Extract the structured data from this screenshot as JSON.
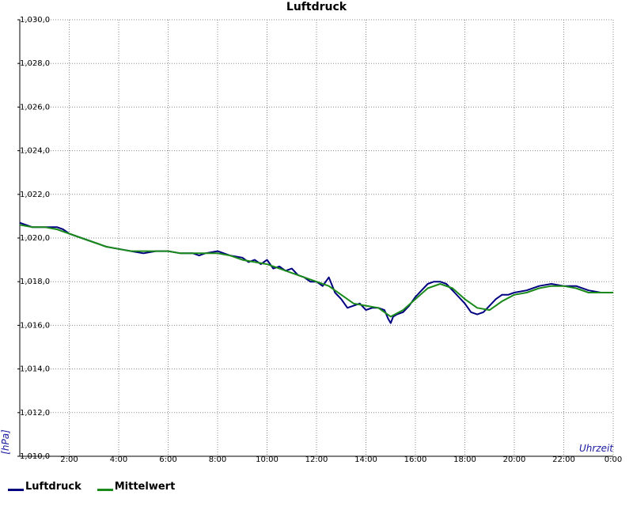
{
  "chart_data": {
    "type": "line",
    "title": "Luftdruck",
    "xlabel": "Uhrzeit",
    "ylabel": "[hPa]",
    "xlim": [
      0,
      24
    ],
    "ylim": [
      1010,
      1030
    ],
    "x_ticks": [
      {
        "value": 2,
        "label": "2:00"
      },
      {
        "value": 4,
        "label": "4:00"
      },
      {
        "value": 6,
        "label": "6:00"
      },
      {
        "value": 8,
        "label": "8:00"
      },
      {
        "value": 10,
        "label": "10:00"
      },
      {
        "value": 12,
        "label": "12:00"
      },
      {
        "value": 14,
        "label": "14:00"
      },
      {
        "value": 16,
        "label": "16:00"
      },
      {
        "value": 18,
        "label": "18:00"
      },
      {
        "value": 20,
        "label": "20:00"
      },
      {
        "value": 22,
        "label": "22:00"
      },
      {
        "value": 24,
        "label": "0:00"
      }
    ],
    "y_ticks": [
      {
        "value": 1010,
        "label": "1,010,0"
      },
      {
        "value": 1012,
        "label": "1,012,0"
      },
      {
        "value": 1014,
        "label": "1,014,0"
      },
      {
        "value": 1016,
        "label": "1,016,0"
      },
      {
        "value": 1018,
        "label": "1,018,0"
      },
      {
        "value": 1020,
        "label": "1,020,0"
      },
      {
        "value": 1022,
        "label": "1,022,0"
      },
      {
        "value": 1024,
        "label": "1,024,0"
      },
      {
        "value": 1026,
        "label": "1,026,0"
      },
      {
        "value": 1028,
        "label": "1,028,0"
      },
      {
        "value": 1030,
        "label": "1,030,0"
      }
    ],
    "grid": true,
    "legend_position": "bottom-left",
    "series": [
      {
        "name": "Luftdruck",
        "color": "#000080",
        "x": [
          0,
          0.25,
          0.5,
          0.75,
          1,
          1.25,
          1.5,
          1.75,
          2,
          2.5,
          3,
          3.5,
          4,
          4.5,
          5,
          5.5,
          6,
          6.5,
          7,
          7.25,
          7.5,
          8,
          8.5,
          9,
          9.25,
          9.5,
          9.75,
          10,
          10.25,
          10.5,
          10.75,
          11,
          11.25,
          11.5,
          11.75,
          12,
          12.25,
          12.5,
          12.75,
          13,
          13.25,
          13.5,
          13.75,
          14,
          14.25,
          14.5,
          14.75,
          14.9,
          15,
          15.1,
          15.25,
          15.5,
          15.75,
          16,
          16.25,
          16.5,
          16.75,
          17,
          17.25,
          17.5,
          17.75,
          18,
          18.25,
          18.5,
          18.75,
          19,
          19.25,
          19.5,
          19.75,
          20,
          20.5,
          21,
          21.5,
          22,
          22.5,
          23,
          23.5,
          24
        ],
        "y": [
          1020.7,
          1020.6,
          1020.5,
          1020.5,
          1020.5,
          1020.5,
          1020.5,
          1020.4,
          1020.2,
          1020.0,
          1019.8,
          1019.6,
          1019.5,
          1019.4,
          1019.3,
          1019.4,
          1019.4,
          1019.3,
          1019.3,
          1019.2,
          1019.3,
          1019.4,
          1019.2,
          1019.1,
          1018.9,
          1019.0,
          1018.8,
          1019.0,
          1018.6,
          1018.7,
          1018.5,
          1018.6,
          1018.3,
          1018.2,
          1018.0,
          1018.0,
          1017.8,
          1018.2,
          1017.5,
          1017.2,
          1016.8,
          1016.9,
          1017.0,
          1016.7,
          1016.8,
          1016.8,
          1016.7,
          1016.3,
          1016.1,
          1016.4,
          1016.5,
          1016.6,
          1016.9,
          1017.3,
          1017.6,
          1017.9,
          1018.0,
          1018.0,
          1017.9,
          1017.6,
          1017.3,
          1017.0,
          1016.6,
          1016.5,
          1016.6,
          1016.9,
          1017.2,
          1017.4,
          1017.4,
          1017.5,
          1017.6,
          1017.8,
          1017.9,
          1017.8,
          1017.8,
          1017.6,
          1017.5,
          1017.5
        ]
      },
      {
        "name": "Mittelwert",
        "color": "#1a8a1a",
        "x": [
          0,
          0.5,
          1,
          1.5,
          2,
          2.5,
          3,
          3.5,
          4,
          4.5,
          5,
          5.5,
          6,
          6.5,
          7,
          7.5,
          8,
          8.5,
          9,
          9.5,
          10,
          10.5,
          11,
          11.5,
          12,
          12.5,
          13,
          13.5,
          14,
          14.5,
          15,
          15.5,
          16,
          16.5,
          17,
          17.5,
          18,
          18.5,
          19,
          19.5,
          20,
          20.5,
          21,
          21.5,
          22,
          22.5,
          23,
          23.5,
          24
        ],
        "y": [
          1020.6,
          1020.5,
          1020.5,
          1020.4,
          1020.2,
          1020.0,
          1019.8,
          1019.6,
          1019.5,
          1019.4,
          1019.4,
          1019.4,
          1019.4,
          1019.3,
          1019.3,
          1019.3,
          1019.3,
          1019.2,
          1019.0,
          1018.9,
          1018.8,
          1018.6,
          1018.4,
          1018.2,
          1018.0,
          1017.8,
          1017.4,
          1017.0,
          1016.9,
          1016.8,
          1016.4,
          1016.7,
          1017.2,
          1017.7,
          1017.9,
          1017.7,
          1017.2,
          1016.8,
          1016.7,
          1017.1,
          1017.4,
          1017.5,
          1017.7,
          1017.8,
          1017.8,
          1017.7,
          1017.5,
          1017.5,
          1017.5
        ]
      }
    ]
  }
}
